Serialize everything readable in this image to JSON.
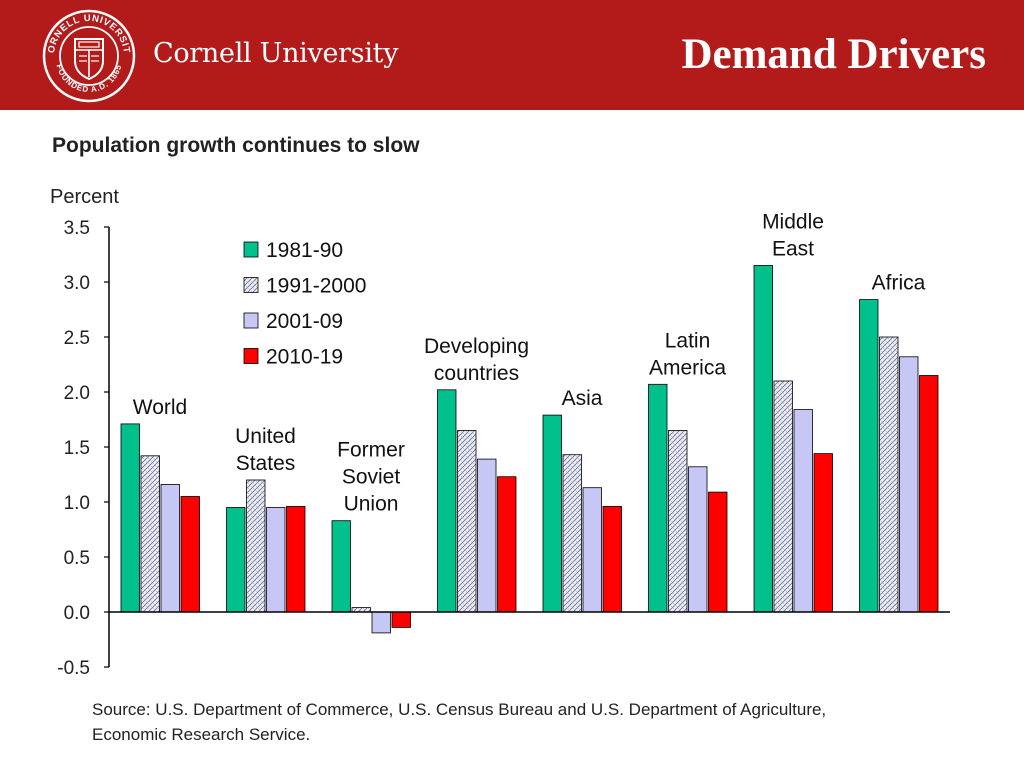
{
  "header": {
    "brand_name": "Cornell University",
    "seal_top_text": "CORNELL UNIVERSITY",
    "seal_bottom_text": "FOUNDED A.D. 1865",
    "slide_title": "Demand Drivers",
    "background_color": "#b31b1b"
  },
  "chart_data": {
    "type": "bar",
    "title": "Population growth continues to slow",
    "ylabel": "Percent",
    "xlabel": "",
    "ylim": [
      -0.5,
      3.5
    ],
    "yticks": [
      "3.5",
      "3.0",
      "2.5",
      "2.0",
      "1.5",
      "1.0",
      "0.5",
      "0.0",
      "-0.5"
    ],
    "ytick_values": [
      3.5,
      3.0,
      2.5,
      2.0,
      1.5,
      1.0,
      0.5,
      0.0,
      -0.5
    ],
    "categories": [
      [
        "World"
      ],
      [
        "United",
        "States"
      ],
      [
        "Former",
        "Soviet",
        "Union"
      ],
      [
        "Developing",
        "countries"
      ],
      [
        "Asia"
      ],
      [
        "Latin",
        "America"
      ],
      [
        "Middle",
        "East"
      ],
      [
        "Africa"
      ]
    ],
    "series": [
      {
        "name": "1981-90",
        "color": "#00c08b",
        "pattern": "solid",
        "values": [
          1.71,
          0.95,
          0.83,
          2.02,
          1.79,
          2.07,
          3.15,
          2.84
        ]
      },
      {
        "name": "1991-2000",
        "color": "#dfe3f2",
        "pattern": "hatched",
        "values": [
          1.42,
          1.2,
          0.04,
          1.65,
          1.43,
          1.65,
          2.1,
          2.5
        ]
      },
      {
        "name": "2001-09",
        "color": "#c7c7f5",
        "pattern": "solid",
        "values": [
          1.16,
          0.95,
          -0.19,
          1.39,
          1.13,
          1.32,
          1.84,
          2.32
        ]
      },
      {
        "name": "2010-19",
        "color": "#ff0000",
        "pattern": "solid",
        "values": [
          1.05,
          0.96,
          -0.14,
          1.23,
          0.96,
          1.09,
          1.44,
          2.15
        ]
      }
    ],
    "legend_position": "top-left",
    "grid": false
  },
  "source_note": "Source: U.S. Department of Commerce, U.S. Census Bureau and U.S. Department of Agriculture, Economic Research Service."
}
